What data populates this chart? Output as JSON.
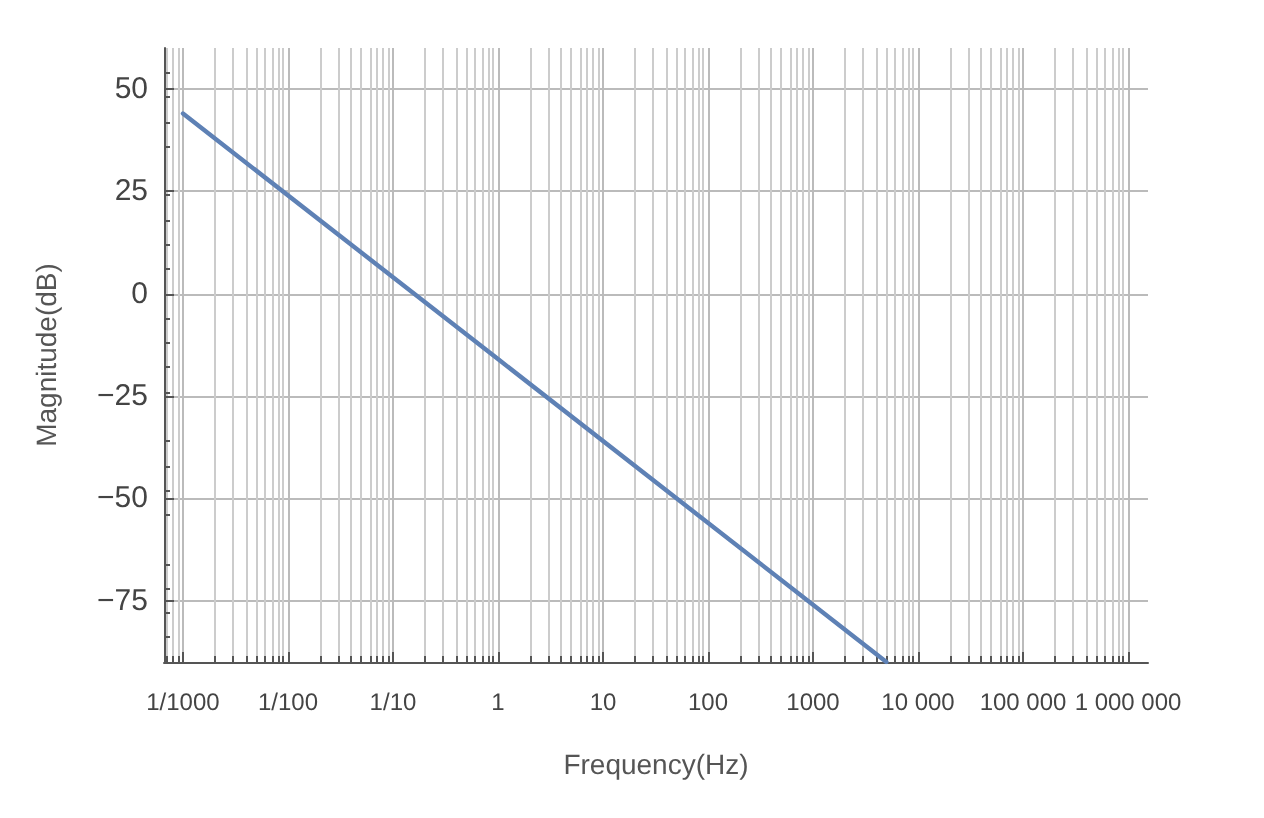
{
  "chart_data": {
    "type": "line",
    "xlabel": "Frequency(Hz)",
    "ylabel": "Magnitude(dB)",
    "log": "x",
    "grid": true,
    "marker": "none",
    "line_style": "solid",
    "series": [
      {
        "color": "#5e81b5",
        "x": [
          0.001,
          1,
          5000
        ],
        "values": [
          44,
          -16,
          -90
        ]
      }
    ],
    "xlim": [
      0.00066,
      1550000
    ],
    "ylim": [
      -90,
      60
    ],
    "xticks": [
      {
        "value": 0.001,
        "label": "1/1000"
      },
      {
        "value": 0.01,
        "label": "1/100"
      },
      {
        "value": 0.1,
        "label": "1/10"
      },
      1,
      10,
      100,
      1000,
      {
        "value": 10000,
        "label": "10 000"
      },
      {
        "value": 100000,
        "label": "100 000"
      },
      {
        "value": 1000000,
        "label": "1 000 000"
      }
    ],
    "yticks": [
      {
        "value": -75,
        "label": "−75"
      },
      {
        "value": -50,
        "label": "−50"
      },
      {
        "value": -25,
        "label": "−25"
      },
      0,
      25,
      50
    ]
  }
}
